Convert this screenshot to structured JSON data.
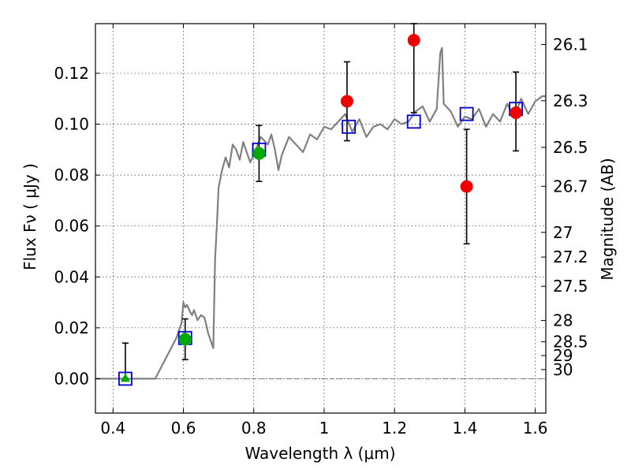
{
  "chart_data": {
    "type": "scatter",
    "xlabel": "Wavelength  λ (μm)",
    "ylabel": "Flux  Fν  ( μJy )",
    "y2label": "Magnitude (AB)",
    "xlim": [
      0.35,
      1.63
    ],
    "ylim": [
      -0.0135,
      0.1395
    ],
    "grid": true,
    "x_ticks": [
      0.4,
      0.6,
      0.8,
      1.0,
      1.2,
      1.4,
      1.6
    ],
    "x_tick_labels": [
      "0.4",
      "0.6",
      "0.8",
      "1",
      "1.2",
      "1.4",
      "1.6"
    ],
    "y_ticks": [
      0.0,
      0.02,
      0.04,
      0.06,
      0.08,
      0.1,
      0.12
    ],
    "y_tick_labels": [
      "0.00",
      "0.02",
      "0.04",
      "0.06",
      "0.08",
      "0.10",
      "0.12"
    ],
    "mag_ticks": [
      {
        "label": "26.1",
        "flux": 0.1313
      },
      {
        "label": "26.3",
        "flux": 0.1092
      },
      {
        "label": "26.5",
        "flux": 0.0909
      },
      {
        "label": "26.7",
        "flux": 0.0756
      },
      {
        "label": "27",
        "flux": 0.0575
      },
      {
        "label": "27.2",
        "flux": 0.0478
      },
      {
        "label": "27.5",
        "flux": 0.0363
      },
      {
        "label": "28",
        "flux": 0.0229
      },
      {
        "label": "28.5",
        "flux": 0.0145
      },
      {
        "label": "29",
        "flux": 0.0091
      },
      {
        "label": "30",
        "flux": 0.0036
      }
    ],
    "template_spectrum": {
      "color": "#808080",
      "x": [
        0.35,
        0.52,
        0.55,
        0.58,
        0.595,
        0.6,
        0.605,
        0.61,
        0.62,
        0.625,
        0.63,
        0.64,
        0.65,
        0.66,
        0.67,
        0.68,
        0.685,
        0.69,
        0.695,
        0.7,
        0.71,
        0.72,
        0.73,
        0.74,
        0.75,
        0.76,
        0.77,
        0.78,
        0.79,
        0.8,
        0.82,
        0.84,
        0.85,
        0.86,
        0.87,
        0.88,
        0.9,
        0.92,
        0.94,
        0.96,
        0.98,
        1.0,
        1.02,
        1.04,
        1.06,
        1.08,
        1.1,
        1.12,
        1.14,
        1.16,
        1.18,
        1.2,
        1.22,
        1.24,
        1.26,
        1.28,
        1.3,
        1.32,
        1.33,
        1.335,
        1.34,
        1.36,
        1.38,
        1.4,
        1.42,
        1.44,
        1.46,
        1.48,
        1.5,
        1.52,
        1.54,
        1.56,
        1.58,
        1.6,
        1.62,
        1.63
      ],
      "y": [
        0.0,
        0.0,
        0.008,
        0.016,
        0.022,
        0.03,
        0.028,
        0.029,
        0.026,
        0.025,
        0.027,
        0.023,
        0.025,
        0.024,
        0.018,
        0.014,
        0.012,
        0.047,
        0.06,
        0.075,
        0.082,
        0.087,
        0.083,
        0.092,
        0.09,
        0.086,
        0.093,
        0.089,
        0.085,
        0.088,
        0.095,
        0.092,
        0.096,
        0.09,
        0.082,
        0.088,
        0.095,
        0.092,
        0.089,
        0.096,
        0.094,
        0.099,
        0.098,
        0.101,
        0.104,
        0.097,
        0.102,
        0.095,
        0.099,
        0.1,
        0.098,
        0.102,
        0.1,
        0.101,
        0.105,
        0.107,
        0.101,
        0.106,
        0.128,
        0.13,
        0.108,
        0.105,
        0.099,
        0.103,
        0.102,
        0.106,
        0.099,
        0.104,
        0.101,
        0.108,
        0.103,
        0.11,
        0.104,
        0.109,
        0.111,
        0.111
      ]
    },
    "model_fluxes": {
      "marker": "open-square",
      "color": "#0000cc",
      "x": [
        0.435,
        0.605,
        0.815,
        1.07,
        1.255,
        1.405,
        1.545
      ],
      "y": [
        0.0,
        0.016,
        0.09,
        0.099,
        0.101,
        0.104,
        0.106
      ]
    },
    "observed_fluxes": [
      {
        "x": 0.435,
        "y": 0.0,
        "err_low": 0.0,
        "err_high": 0.014,
        "marker": "triangle",
        "color": "#00aa00"
      },
      {
        "x": 0.605,
        "y": 0.0155,
        "err_low": 0.0075,
        "err_high": 0.0235,
        "marker": "circle",
        "color": "#00aa00"
      },
      {
        "x": 0.815,
        "y": 0.0885,
        "err_low": 0.0775,
        "err_high": 0.0995,
        "marker": "circle",
        "color": "#00aa00"
      },
      {
        "x": 1.065,
        "y": 0.109,
        "err_low": 0.0935,
        "err_high": 0.1245,
        "marker": "circle",
        "color": "#ee0000"
      },
      {
        "x": 1.255,
        "y": 0.133,
        "err_low": 0.1045,
        "err_high": 0.1395,
        "marker": "circle",
        "color": "#ee0000"
      },
      {
        "x": 1.405,
        "y": 0.0755,
        "err_low": 0.053,
        "err_high": 0.098,
        "marker": "circle",
        "color": "#ee0000"
      },
      {
        "x": 1.545,
        "y": 0.1045,
        "err_low": 0.0895,
        "err_high": 0.1205,
        "marker": "circle",
        "color": "#ee0000"
      }
    ],
    "zero_line": {
      "y": 0.0,
      "color": "#555555",
      "style": "dash-dot"
    }
  }
}
